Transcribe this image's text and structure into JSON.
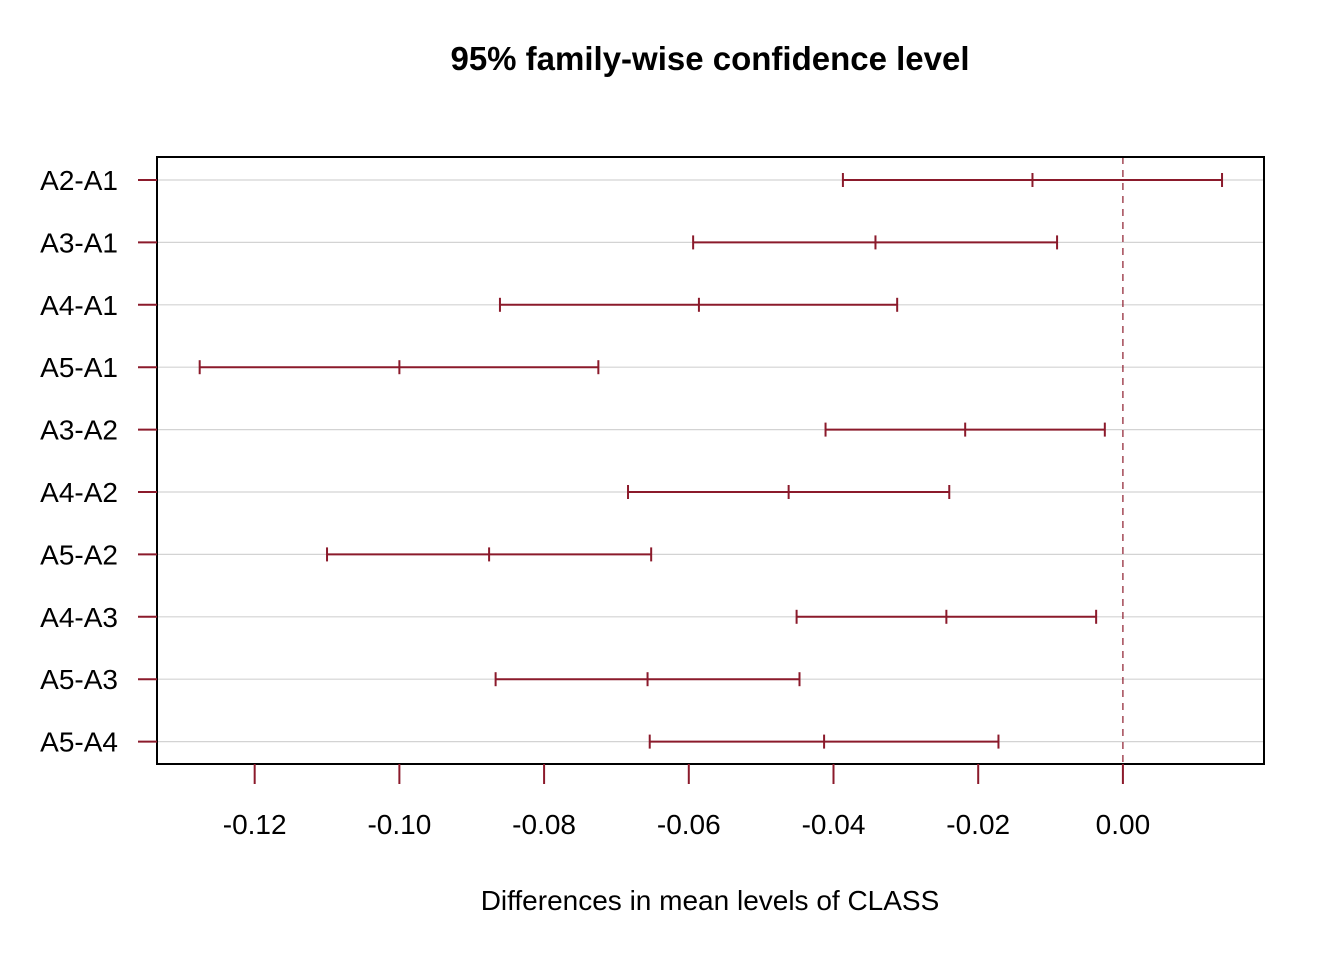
{
  "chart_data": {
    "type": "interval",
    "title": "95% family-wise confidence level",
    "xlabel": "Differences in mean levels of CLASS",
    "xlim": [
      -0.1335,
      0.0195
    ],
    "x_ticks": [
      -0.12,
      -0.1,
      -0.08,
      -0.06,
      -0.04,
      -0.02,
      0.0
    ],
    "x_tick_labels": [
      "-0.12",
      "-0.10",
      "-0.08",
      "-0.06",
      "-0.04",
      "-0.02",
      "0.00"
    ],
    "reference_line": 0.0,
    "grid": true,
    "color": "#8b1a2b",
    "categories": [
      "A2-A1",
      "A3-A1",
      "A4-A1",
      "A5-A1",
      "A3-A2",
      "A4-A2",
      "A5-A2",
      "A4-A3",
      "A5-A3",
      "A5-A4"
    ],
    "intervals": [
      {
        "label": "A2-A1",
        "lwr": -0.0387,
        "diff": -0.0125,
        "upr": 0.0137
      },
      {
        "label": "A3-A1",
        "lwr": -0.0594,
        "diff": -0.0342,
        "upr": -0.0091
      },
      {
        "label": "A4-A1",
        "lwr": -0.0861,
        "diff": -0.0586,
        "upr": -0.0312
      },
      {
        "label": "A5-A1",
        "lwr": -0.1276,
        "diff": -0.1,
        "upr": -0.0725
      },
      {
        "label": "A3-A2",
        "lwr": -0.0411,
        "diff": -0.0218,
        "upr": -0.0025
      },
      {
        "label": "A4-A2",
        "lwr": -0.0684,
        "diff": -0.0462,
        "upr": -0.024
      },
      {
        "label": "A5-A2",
        "lwr": -0.11,
        "diff": -0.0876,
        "upr": -0.0652
      },
      {
        "label": "A4-A3",
        "lwr": -0.0451,
        "diff": -0.0244,
        "upr": -0.0037
      },
      {
        "label": "A5-A3",
        "lwr": -0.0867,
        "diff": -0.0657,
        "upr": -0.0447
      },
      {
        "label": "A5-A4",
        "lwr": -0.0654,
        "diff": -0.0413,
        "upr": -0.0172
      }
    ]
  }
}
